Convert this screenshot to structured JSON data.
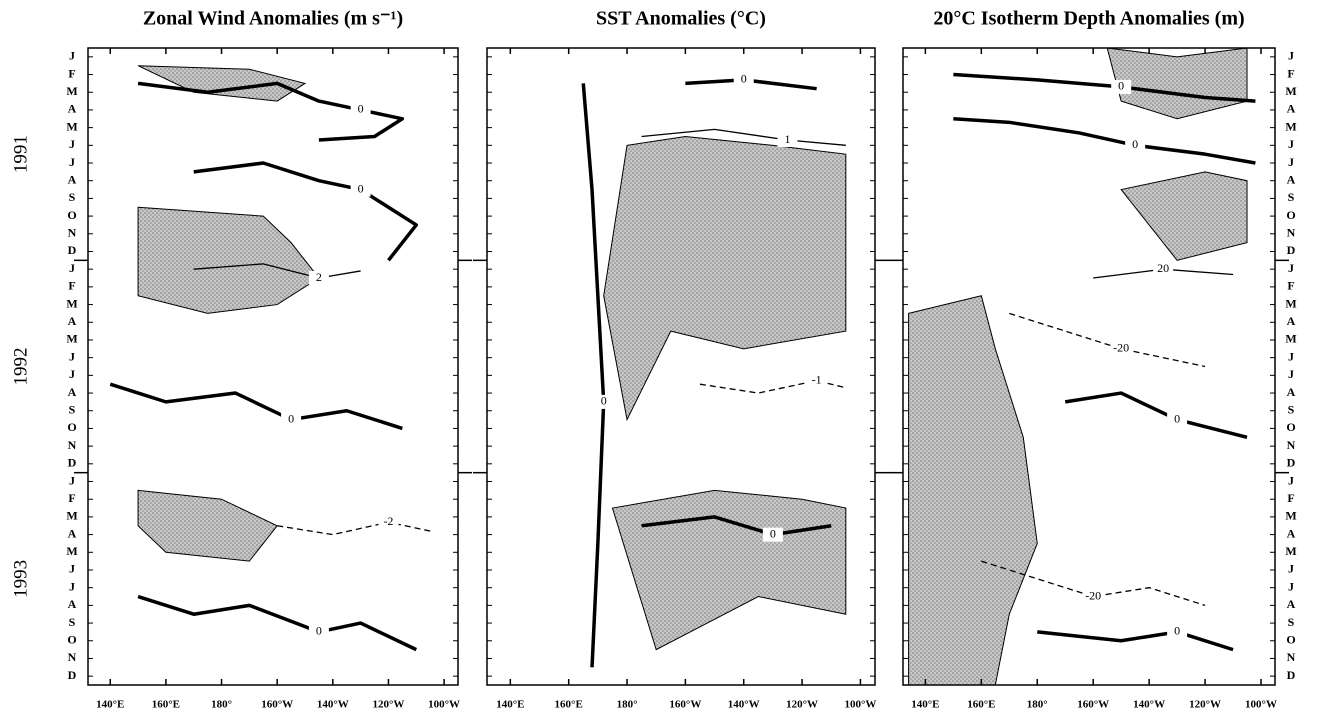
{
  "chart_data": [
    {
      "type": "contour",
      "title": "Zonal Wind Anomalies (m s⁻¹)",
      "xlim": [
        132,
        265
      ],
      "ylim": [
        0,
        36
      ],
      "xticks": [
        {
          "value": 140,
          "label": "140°E"
        },
        {
          "value": 160,
          "label": "160°E"
        },
        {
          "value": 180,
          "label": "180°"
        },
        {
          "value": 200,
          "label": "160°W"
        },
        {
          "value": 220,
          "label": "140°W"
        },
        {
          "value": 240,
          "label": "120°W"
        },
        {
          "value": 260,
          "label": "100°W"
        }
      ],
      "categories": [
        "J",
        "F",
        "M",
        "A",
        "M",
        "J",
        "J",
        "A",
        "S",
        "O",
        "N",
        "D",
        "J",
        "F",
        "M",
        "A",
        "M",
        "J",
        "J",
        "A",
        "S",
        "O",
        "N",
        "D",
        "J",
        "F",
        "M",
        "A",
        "M",
        "J",
        "J",
        "A",
        "S",
        "O",
        "N",
        "D"
      ],
      "years": [
        "1991",
        "1992",
        "1993"
      ],
      "shading": [
        {
          "lon": [
            150,
            195,
            205,
            215,
            200,
            175,
            150
          ],
          "time": [
            9,
            9.5,
            11,
            13,
            14.5,
            15,
            14
          ]
        },
        {
          "lon": [
            150,
            180,
            200,
            190,
            160,
            150
          ],
          "time": [
            25,
            25.5,
            27,
            29,
            28.5,
            27
          ]
        },
        {
          "lon": [
            150,
            190,
            210,
            200,
            170
          ],
          "time": [
            1,
            1.2,
            2,
            3,
            2.5
          ]
        }
      ],
      "contours": [
        {
          "level": 0,
          "lon": [
            150,
            175,
            200,
            215,
            230,
            245,
            235,
            215
          ],
          "time": [
            2,
            2.5,
            2,
            3,
            3.5,
            4,
            5,
            5.2
          ]
        },
        {
          "level": 0,
          "lon": [
            170,
            195,
            215,
            230,
            240,
            250,
            240
          ],
          "time": [
            7,
            6.5,
            7.5,
            8,
            9,
            10,
            12
          ]
        },
        {
          "level": 0,
          "lon": [
            140,
            160,
            185,
            205,
            225,
            245
          ],
          "time": [
            19,
            20,
            19.5,
            21,
            20.5,
            21.5
          ]
        },
        {
          "level": 0,
          "lon": [
            150,
            170,
            190,
            215,
            230,
            250
          ],
          "time": [
            31,
            32,
            31.5,
            33,
            32.5,
            34
          ]
        },
        {
          "level": 2,
          "lon": [
            170,
            195,
            215,
            230
          ],
          "time": [
            12.5,
            12.2,
            13,
            12.6
          ]
        },
        {
          "level": -2,
          "lon": [
            200,
            220,
            240,
            255
          ],
          "time": [
            27,
            27.5,
            26.8,
            27.3
          ]
        }
      ]
    },
    {
      "type": "contour",
      "title": "SST Anomalies (°C)",
      "xlim": [
        132,
        265
      ],
      "ylim": [
        0,
        36
      ],
      "xticks": [
        {
          "value": 140,
          "label": "140°E"
        },
        {
          "value": 160,
          "label": "160°E"
        },
        {
          "value": 180,
          "label": "180°"
        },
        {
          "value": 200,
          "label": "160°W"
        },
        {
          "value": 220,
          "label": "140°W"
        },
        {
          "value": 240,
          "label": "120°W"
        },
        {
          "value": 260,
          "label": "100°W"
        }
      ],
      "shading": [
        {
          "lon": [
            180,
            200,
            230,
            255,
            255,
            220,
            195,
            180,
            172
          ],
          "time": [
            5.5,
            5,
            5.5,
            6,
            16,
            17,
            16,
            21,
            14
          ]
        },
        {
          "lon": [
            175,
            210,
            240,
            255,
            255,
            225,
            190
          ],
          "time": [
            26,
            25,
            25.5,
            26,
            32,
            31,
            34
          ]
        }
      ],
      "contours": [
        {
          "level": 1,
          "lon": [
            185,
            210,
            235,
            255
          ],
          "time": [
            5,
            4.6,
            5.2,
            5.5
          ]
        },
        {
          "level": 0,
          "lon": [
            200,
            220,
            245
          ],
          "time": [
            2,
            1.8,
            2.3
          ]
        },
        {
          "level": 0,
          "lon": [
            165,
            168,
            170,
            172,
            170,
            168
          ],
          "time": [
            2,
            8,
            14,
            20,
            28,
            35
          ]
        },
        {
          "level": -1,
          "lon": [
            205,
            225,
            245,
            255
          ],
          "time": [
            19,
            19.5,
            18.8,
            19.2
          ]
        },
        {
          "level": 0,
          "lon": [
            185,
            210,
            230,
            250
          ],
          "time": [
            27,
            26.5,
            27.5,
            27
          ]
        }
      ]
    },
    {
      "type": "contour",
      "title": "20°C Isotherm Depth Anomalies (m)",
      "xlim": [
        132,
        265
      ],
      "ylim": [
        0,
        36
      ],
      "xticks": [
        {
          "value": 140,
          "label": "140°E"
        },
        {
          "value": 160,
          "label": "160°E"
        },
        {
          "value": 180,
          "label": "180°"
        },
        {
          "value": 200,
          "label": "160°W"
        },
        {
          "value": 220,
          "label": "140°W"
        },
        {
          "value": 240,
          "label": "120°W"
        },
        {
          "value": 260,
          "label": "100°W"
        }
      ],
      "categories": [
        "J",
        "F",
        "M",
        "A",
        "M",
        "J",
        "J",
        "A",
        "S",
        "O",
        "N",
        "D",
        "J",
        "F",
        "M",
        "A",
        "M",
        "J",
        "J",
        "A",
        "S",
        "O",
        "N",
        "D",
        "J",
        "F",
        "M",
        "A",
        "M",
        "J",
        "J",
        "A",
        "S",
        "O",
        "N",
        "D"
      ],
      "shading": [
        {
          "lon": [
            134,
            160,
            165,
            175,
            180,
            170,
            165,
            134
          ],
          "time": [
            15,
            14,
            17,
            22,
            28,
            32,
            36,
            36
          ]
        },
        {
          "lon": [
            205,
            230,
            255,
            255,
            230,
            210
          ],
          "time": [
            0,
            0.5,
            0,
            3,
            4,
            3
          ]
        },
        {
          "lon": [
            210,
            240,
            255,
            255,
            230
          ],
          "time": [
            8,
            7,
            7.5,
            11,
            12
          ]
        }
      ],
      "contours": [
        {
          "level": 0,
          "lon": [
            150,
            180,
            210,
            240,
            258
          ],
          "time": [
            1.5,
            1.8,
            2.2,
            2.8,
            3
          ]
        },
        {
          "level": 0,
          "lon": [
            150,
            170,
            195,
            215,
            240,
            258
          ],
          "time": [
            4,
            4.2,
            4.8,
            5.5,
            6,
            6.5
          ]
        },
        {
          "level": 20,
          "lon": [
            200,
            225,
            250
          ],
          "time": [
            13,
            12.5,
            12.8
          ]
        },
        {
          "level": -20,
          "lon": [
            170,
            190,
            210,
            240
          ],
          "time": [
            15,
            16,
            17,
            18
          ]
        },
        {
          "level": 0,
          "lon": [
            190,
            210,
            230,
            255
          ],
          "time": [
            20,
            19.5,
            21,
            22
          ]
        },
        {
          "level": -20,
          "lon": [
            160,
            180,
            200,
            220,
            240
          ],
          "time": [
            29,
            30,
            31,
            30.5,
            31.5
          ]
        },
        {
          "level": 0,
          "lon": [
            180,
            210,
            230,
            250
          ],
          "time": [
            33,
            33.5,
            33,
            34
          ]
        }
      ]
    }
  ]
}
